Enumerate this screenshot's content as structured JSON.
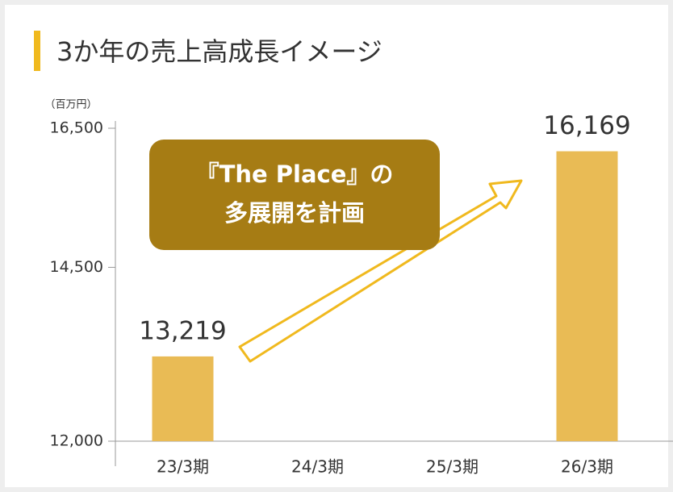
{
  "chart_data": {
    "type": "bar",
    "title": "3か年の売上高成長イメージ",
    "y_axis_label": "（百万円）",
    "annotation": [
      "『The Place』の",
      "多展開を計画"
    ],
    "categories": [
      "23/3期",
      "24/3期",
      "25/3期",
      "26/3期"
    ],
    "values": [
      13219,
      null,
      null,
      16169
    ],
    "value_labels": [
      "13,219",
      null,
      null,
      "16,169"
    ],
    "color": "#e9bb55",
    "ylim": [
      12000,
      16500
    ],
    "yticks": [
      {
        "value": 12000,
        "label": "12,000"
      },
      {
        "value": 14500,
        "label": "14,500"
      },
      {
        "value": 16500,
        "label": "16,500"
      }
    ],
    "grid": false
  }
}
